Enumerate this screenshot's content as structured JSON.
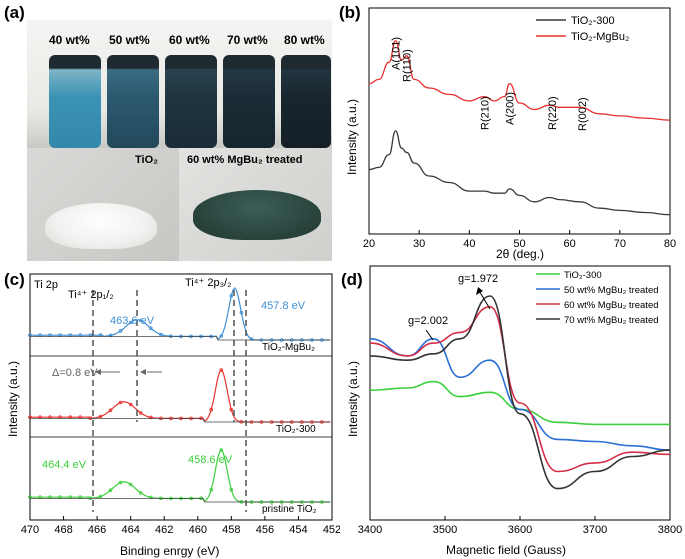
{
  "panels": {
    "a": {
      "letter": "(a)",
      "vials": [
        "40 wt%",
        "50 wt%",
        "60 wt%",
        "70 wt%",
        "80 wt%"
      ],
      "powder_left_label": "TiO₂",
      "powder_right_label": "60 wt% MgBu₂ treated"
    },
    "b": {
      "letter": "(b)"
    },
    "c": {
      "letter": "(c)"
    },
    "d": {
      "letter": "(d)"
    }
  },
  "colors": {
    "black_series": "#3a3a3a",
    "red_series": "#e8322f",
    "blue_series": "#3f8fd6",
    "green_series": "#3ccf3c",
    "epr_blue": "#2a6fd6",
    "epr_red": "#d42d45",
    "epr_black": "#333333"
  },
  "chart_data": [
    {
      "type": "line",
      "panel": "b",
      "xlabel": "2θ (deg.)",
      "ylabel": "Intensity (a.u.)",
      "xlim": [
        20,
        80
      ],
      "xticks": [
        20,
        30,
        40,
        50,
        60,
        70,
        80
      ],
      "legend": [
        "TiO₂-300",
        "TiO₂-MgBu₂"
      ],
      "legend_position": "top-right",
      "annotations": [
        "A(101)",
        "R(110)",
        "R(210)",
        "A(200)",
        "R(220)",
        "R(002)"
      ],
      "annotation_x": [
        25.3,
        27.5,
        43,
        48,
        56.5,
        62.5
      ],
      "series": [
        {
          "name": "TiO₂-300",
          "x": [
            20,
            22,
            24,
            25.3,
            26.5,
            27.5,
            29,
            32,
            36,
            40,
            43,
            45,
            47,
            48,
            50,
            53,
            56,
            58,
            62,
            66,
            70,
            75,
            80
          ],
          "y": [
            0.3,
            0.31,
            0.37,
            0.48,
            0.4,
            0.38,
            0.33,
            0.27,
            0.24,
            0.2,
            0.2,
            0.19,
            0.19,
            0.21,
            0.18,
            0.15,
            0.17,
            0.16,
            0.15,
            0.12,
            0.11,
            0.1,
            0.09
          ]
        },
        {
          "name": "TiO₂-MgBu₂",
          "x": [
            20,
            22,
            24,
            25.3,
            26.5,
            27.5,
            29,
            32,
            36,
            40,
            43,
            45,
            47,
            48,
            50,
            53,
            56,
            58,
            62,
            66,
            70,
            75,
            80
          ],
          "y": [
            0.7,
            0.72,
            0.8,
            0.9,
            0.81,
            0.83,
            0.72,
            0.68,
            0.65,
            0.62,
            0.64,
            0.62,
            0.64,
            0.7,
            0.61,
            0.58,
            0.6,
            0.59,
            0.59,
            0.56,
            0.55,
            0.54,
            0.53
          ]
        }
      ]
    },
    {
      "type": "line",
      "panel": "c",
      "title": "Ti 2p",
      "xlabel": "Binding enrgy (eV)",
      "ylabel": "Intensity (a.u.)",
      "xlim": [
        470,
        452
      ],
      "xticks": [
        470,
        468,
        466,
        464,
        462,
        460,
        458,
        456,
        454,
        452
      ],
      "annotations": [
        "Ti⁴⁺ 2p₁/₂",
        "Ti⁴⁺ 2p₃/₂",
        "Δ=0.8 eV",
        "463.6 eV",
        "457.8 eV",
        "464.4 eV",
        "458.6 eV"
      ],
      "series": [
        {
          "name": "TiO₂-MgBu₂",
          "peaks_eV": [
            463.6,
            457.8
          ]
        },
        {
          "name": "TiO₂-300",
          "peaks_eV": [
            464.4,
            458.6
          ]
        },
        {
          "name": "pristine TiO₂",
          "peaks_eV": [
            464.4,
            458.6
          ]
        }
      ]
    },
    {
      "type": "line",
      "panel": "d",
      "xlabel": "Magnetic field (Gauss)",
      "ylabel": "Intensity (a.u.)",
      "xlim": [
        3400,
        3800
      ],
      "xticks": [
        3400,
        3500,
        3600,
        3700,
        3800
      ],
      "legend": [
        "TiO₂-300",
        "50 wt% MgBu₂ treated",
        "60 wt% MgBu₂ treated",
        "70 wt% MgBu₂ treated"
      ],
      "legend_position": "top-right",
      "annotations": [
        "g=2.002",
        "g=1.972"
      ],
      "series": [
        {
          "name": "TiO₂-300",
          "x": [
            3400,
            3450,
            3485,
            3520,
            3560,
            3600,
            3650,
            3700,
            3800
          ],
          "y": [
            0.56,
            0.57,
            0.6,
            0.53,
            0.55,
            0.47,
            0.41,
            0.4,
            0.4
          ]
        },
        {
          "name": "50 wt% MgBu₂ treated",
          "x": [
            3400,
            3450,
            3485,
            3520,
            3560,
            3600,
            3650,
            3700,
            3750,
            3800
          ],
          "y": [
            0.8,
            0.72,
            0.8,
            0.62,
            0.7,
            0.47,
            0.33,
            0.32,
            0.3,
            0.28
          ]
        },
        {
          "name": "60 wt% MgBu₂ treated",
          "x": [
            3400,
            3450,
            3485,
            3520,
            3560,
            3600,
            3650,
            3700,
            3750,
            3800
          ],
          "y": [
            0.78,
            0.72,
            0.78,
            0.83,
            0.95,
            0.5,
            0.18,
            0.22,
            0.27,
            0.26
          ]
        },
        {
          "name": "70 wt% MgBu₂ treated",
          "x": [
            3400,
            3450,
            3485,
            3520,
            3560,
            3600,
            3650,
            3700,
            3750,
            3800
          ],
          "y": [
            0.72,
            0.7,
            0.73,
            0.8,
            1.0,
            0.45,
            0.1,
            0.18,
            0.25,
            0.28
          ]
        }
      ]
    }
  ]
}
